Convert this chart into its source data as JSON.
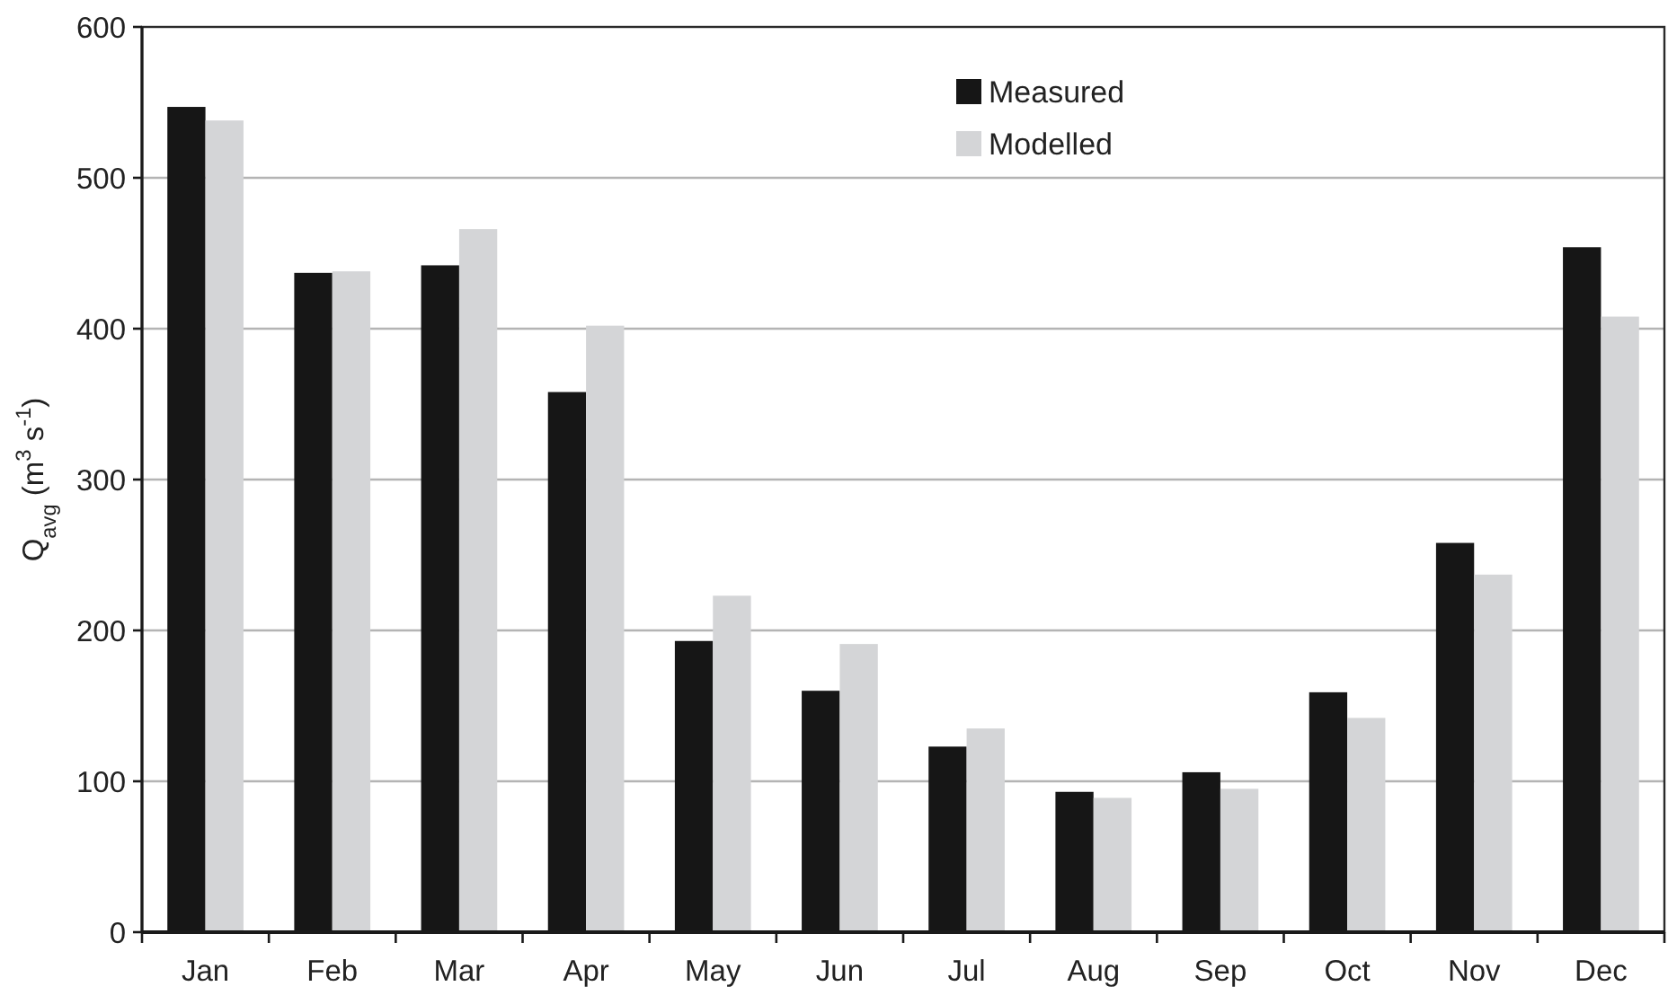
{
  "chart_data": {
    "type": "bar",
    "ylabel": "Q$_{avg}$ (m$^{3}$ s$^{-1}$)",
    "categories": [
      "Jan",
      "Feb",
      "Mar",
      "Apr",
      "May",
      "Jun",
      "Jul",
      "Aug",
      "Sep",
      "Oct",
      "Nov",
      "Dec"
    ],
    "series": [
      {
        "name": "Measured",
        "color": "#161616",
        "values": [
          547,
          437,
          442,
          358,
          193,
          160,
          123,
          93,
          106,
          159,
          258,
          454
        ]
      },
      {
        "name": "Modelled",
        "color": "#d4d5d7",
        "values": [
          538,
          438,
          466,
          402,
          223,
          191,
          135,
          89,
          95,
          142,
          237,
          408
        ]
      }
    ],
    "ylim": [
      0,
      600
    ],
    "yticks": [
      0,
      100,
      200,
      300,
      400,
      500,
      600
    ],
    "grid": "y",
    "legend": "top"
  }
}
